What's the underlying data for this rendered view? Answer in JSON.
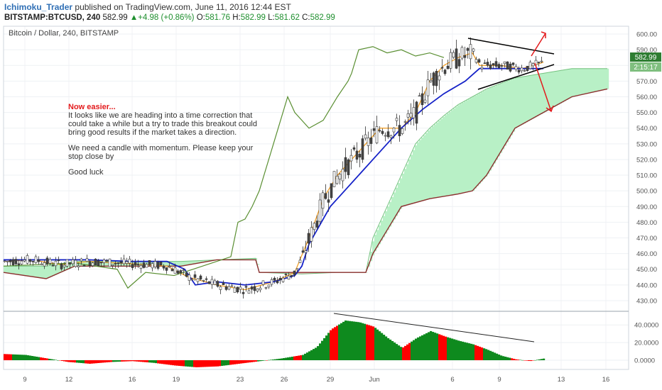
{
  "header": {
    "author": "Ichimoku_Trader",
    "published": "published on TradingView.com, June 11, 2016 12:44 EST",
    "symbol": "BITSTAMP:BTCUSD, 240",
    "last": "582.99",
    "change_arrow": "▲",
    "change": "+4.98 (+0.86%)",
    "o_label": "O:",
    "o_value": "581.76",
    "h_label": "H:",
    "h_value": "582.99",
    "l_label": "L:",
    "l_value": "581.62",
    "c_label": "C:",
    "c_value": "582.99"
  },
  "note": {
    "title": "Now easier...",
    "para1": "It looks like we are heading into a time correction that could take a while but a try to trade this breakout could bring good results if the market takes a direction.",
    "para2": "We need a candle with momentum. Please keep your stop close by",
    "para3": "Good luck"
  },
  "chart_data": {
    "type": "line",
    "title": "Bitcoin / Dollar, 240, BITSTAMP",
    "x_ticks": [
      "9",
      "12",
      "16",
      "19",
      "23",
      "26",
      "29",
      "Jun",
      "6",
      "9",
      "13",
      "16"
    ],
    "y_ticks": [
      430,
      440,
      450,
      460,
      470,
      480,
      490,
      500,
      510,
      520,
      530,
      540,
      550,
      560,
      570,
      580,
      590,
      600
    ],
    "ylim": [
      425,
      605
    ],
    "price_label": "582.99",
    "countdown_label": "2:15:17",
    "price_series": [
      {
        "name": "tenkan",
        "color": "#f29a1b",
        "points": [
          [
            0,
            455
          ],
          [
            40,
            456
          ],
          [
            80,
            453
          ],
          [
            120,
            455
          ],
          [
            160,
            454
          ],
          [
            200,
            453
          ],
          [
            230,
            452
          ],
          [
            260,
            445
          ],
          [
            300,
            440
          ],
          [
            340,
            437
          ],
          [
            380,
            442
          ],
          [
            410,
            448
          ],
          [
            430,
            470
          ],
          [
            450,
            495
          ],
          [
            470,
            510
          ],
          [
            490,
            520
          ],
          [
            510,
            530
          ],
          [
            530,
            540
          ],
          [
            560,
            540
          ],
          [
            580,
            550
          ],
          [
            600,
            570
          ],
          [
            620,
            580
          ],
          [
            640,
            585
          ],
          [
            660,
            588
          ],
          [
            670,
            580
          ],
          [
            700,
            580
          ],
          [
            730,
            578
          ],
          [
            760,
            582
          ]
        ]
      },
      {
        "name": "kijun",
        "color": "#1522c8",
        "points": [
          [
            0,
            456
          ],
          [
            60,
            456
          ],
          [
            120,
            456
          ],
          [
            180,
            455
          ],
          [
            230,
            455
          ],
          [
            255,
            450
          ],
          [
            270,
            440
          ],
          [
            300,
            442
          ],
          [
            340,
            440
          ],
          [
            380,
            442
          ],
          [
            410,
            446
          ],
          [
            420,
            452
          ],
          [
            430,
            466
          ],
          [
            450,
            482
          ],
          [
            460,
            490
          ],
          [
            480,
            500
          ],
          [
            500,
            510
          ],
          [
            520,
            520
          ],
          [
            540,
            530
          ],
          [
            560,
            540
          ],
          [
            590,
            552
          ],
          [
            620,
            562
          ],
          [
            650,
            570
          ],
          [
            670,
            578
          ],
          [
            700,
            578
          ],
          [
            740,
            578
          ],
          [
            760,
            578
          ]
        ]
      },
      {
        "name": "chikou",
        "color": "#5a8f32",
        "points": [
          [
            0,
            452
          ],
          [
            100,
            454
          ],
          [
            160,
            450
          ],
          [
            175,
            438
          ],
          [
            200,
            448
          ],
          [
            240,
            446
          ],
          [
            280,
            452
          ],
          [
            320,
            458
          ],
          [
            330,
            480
          ],
          [
            340,
            482
          ],
          [
            350,
            490
          ],
          [
            360,
            500
          ],
          [
            380,
            530
          ],
          [
            400,
            560
          ],
          [
            410,
            550
          ],
          [
            430,
            540
          ],
          [
            450,
            545
          ],
          [
            470,
            560
          ],
          [
            485,
            570
          ],
          [
            490,
            575
          ],
          [
            500,
            590
          ],
          [
            520,
            592
          ],
          [
            540,
            588
          ],
          [
            560,
            590
          ],
          [
            580,
            586
          ],
          [
            600,
            588
          ],
          [
            620,
            585
          ]
        ]
      }
    ],
    "cloud": {
      "span_a": [
        [
          0,
          452
        ],
        [
          60,
          452
        ],
        [
          100,
          455
        ],
        [
          160,
          455
        ],
        [
          250,
          455
        ],
        [
          300,
          456
        ],
        [
          355,
          457
        ],
        [
          360,
          448
        ],
        [
          420,
          447
        ],
        [
          470,
          448
        ],
        [
          510,
          448
        ],
        [
          520,
          470
        ],
        [
          540,
          490
        ],
        [
          560,
          510
        ],
        [
          580,
          530
        ],
        [
          600,
          540
        ],
        [
          620,
          548
        ],
        [
          640,
          555
        ],
        [
          660,
          560
        ],
        [
          680,
          565
        ],
        [
          720,
          572
        ],
        [
          760,
          575
        ],
        [
          800,
          578
        ],
        [
          850,
          578
        ]
      ],
      "span_b": [
        [
          0,
          448
        ],
        [
          60,
          444
        ],
        [
          100,
          452
        ],
        [
          160,
          452
        ],
        [
          250,
          452
        ],
        [
          300,
          456
        ],
        [
          355,
          456
        ],
        [
          360,
          448
        ],
        [
          400,
          448
        ],
        [
          470,
          448
        ],
        [
          510,
          448
        ],
        [
          520,
          460
        ],
        [
          540,
          475
        ],
        [
          560,
          490
        ],
        [
          600,
          495
        ],
        [
          640,
          498
        ],
        [
          660,
          500
        ],
        [
          680,
          510
        ],
        [
          700,
          525
        ],
        [
          720,
          540
        ],
        [
          760,
          550
        ],
        [
          800,
          560
        ],
        [
          850,
          565
        ]
      ],
      "bull_color": "#b8f0c6",
      "bear_color": "#f2c1c7",
      "span_b_color": "#8b2e2e"
    },
    "oscillator": {
      "y_ticks": [
        "40.0000",
        "20.0000",
        "0.0000"
      ],
      "values": [
        [
          0,
          7
        ],
        [
          30,
          6
        ],
        [
          60,
          2
        ],
        [
          90,
          -2
        ],
        [
          120,
          -4
        ],
        [
          150,
          -2
        ],
        [
          180,
          -1
        ],
        [
          210,
          -3
        ],
        [
          240,
          -6
        ],
        [
          270,
          -8
        ],
        [
          300,
          -7
        ],
        [
          330,
          -4
        ],
        [
          360,
          -1
        ],
        [
          390,
          2
        ],
        [
          420,
          6
        ],
        [
          440,
          15
        ],
        [
          460,
          35
        ],
        [
          480,
          45
        ],
        [
          500,
          43
        ],
        [
          520,
          38
        ],
        [
          540,
          25
        ],
        [
          560,
          14
        ],
        [
          580,
          25
        ],
        [
          600,
          33
        ],
        [
          620,
          27
        ],
        [
          640,
          22
        ],
        [
          660,
          18
        ],
        [
          680,
          12
        ],
        [
          700,
          5
        ],
        [
          720,
          1
        ],
        [
          740,
          -1
        ],
        [
          760,
          2
        ]
      ],
      "pos_color": "#0e8a1e",
      "neg_color": "#ff0000"
    }
  }
}
